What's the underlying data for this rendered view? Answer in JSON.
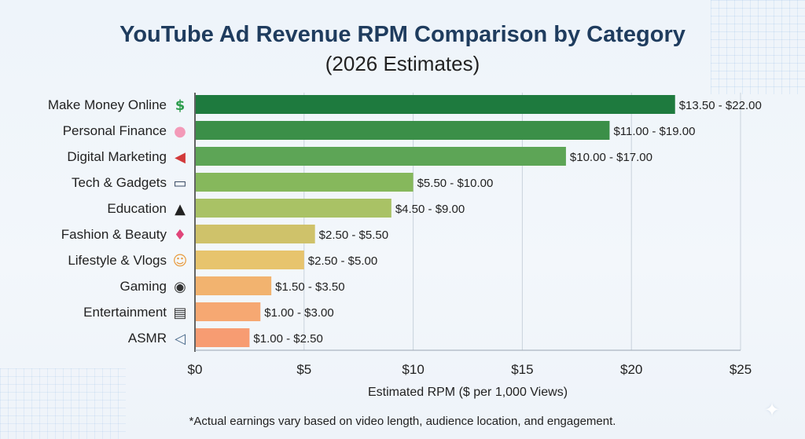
{
  "chart_data": {
    "type": "bar",
    "orientation": "horizontal",
    "title": "YouTube Ad Revenue RPM Comparison by Category",
    "subtitle": "(2026 Estimates)",
    "xlabel": "Estimated RPM ($ per 1,000 Views)",
    "ylabel": "",
    "xlim": [
      0,
      25
    ],
    "xticks": [
      0,
      5,
      10,
      15,
      20,
      25
    ],
    "xtick_labels": [
      "$0",
      "$5",
      "$10",
      "$15",
      "$20",
      "$25"
    ],
    "grid": "vertical",
    "categories": [
      {
        "name": "Make Money Online",
        "icon": "money-chart-icon",
        "low": 13.5,
        "high": 22.0,
        "label": "$13.50 - $22.00",
        "color": "#1e7a3e"
      },
      {
        "name": "Personal Finance",
        "icon": "piggy-bank-icon",
        "low": 11.0,
        "high": 19.0,
        "label": "$11.00 - $19.00",
        "color": "#3b8f48"
      },
      {
        "name": "Digital Marketing",
        "icon": "megaphone-icon",
        "low": 10.0,
        "high": 17.0,
        "label": "$10.00 - $17.00",
        "color": "#5da556"
      },
      {
        "name": "Tech & Gadgets",
        "icon": "monitor-icon",
        "low": 5.5,
        "high": 10.0,
        "label": "$5.50 - $10.00",
        "color": "#86b85c"
      },
      {
        "name": "Education",
        "icon": "graduation-cap-icon",
        "low": 4.5,
        "high": 9.0,
        "label": "$4.50 - $9.00",
        "color": "#a9c265"
      },
      {
        "name": "Fashion & Beauty",
        "icon": "dress-icon",
        "low": 2.5,
        "high": 5.5,
        "label": "$2.50 - $5.50",
        "color": "#cfc26a"
      },
      {
        "name": "Lifestyle & Vlogs",
        "icon": "person-vlogging-icon",
        "low": 2.5,
        "high": 5.0,
        "label": "$2.50 - $5.00",
        "color": "#e7c46d"
      },
      {
        "name": "Gaming",
        "icon": "gamepad-icon",
        "low": 1.5,
        "high": 3.5,
        "label": "$1.50 - $3.50",
        "color": "#f2b36f"
      },
      {
        "name": "Entertainment",
        "icon": "clapperboard-icon",
        "low": 1.0,
        "high": 3.0,
        "label": "$1.00 - $3.00",
        "color": "#f6a872"
      },
      {
        "name": "ASMR",
        "icon": "speaker-icon",
        "low": 1.0,
        "high": 2.5,
        "label": "$1.00 - $2.50",
        "color": "#f79c72"
      }
    ],
    "footnote": "*Actual earnings vary based on video length, audience location, and engagement."
  }
}
